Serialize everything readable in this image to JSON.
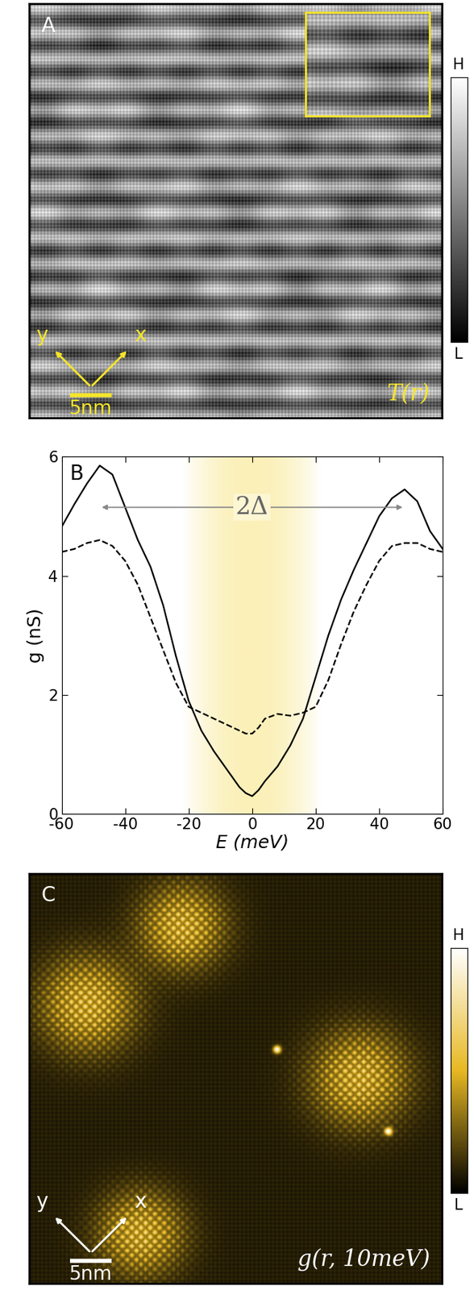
{
  "chart_data": [
    {
      "type": "image",
      "label": "A",
      "annotation": "T(r)",
      "scale_bar": "5nm",
      "axis_labels": [
        "x",
        "y"
      ],
      "colorbar_labels": [
        "L",
        "H"
      ],
      "color": "gray"
    },
    {
      "type": "line",
      "label": "B",
      "x": [
        -60,
        -56,
        -52,
        -48,
        -44,
        -40,
        -36,
        -32,
        -28,
        -24,
        -20,
        -16,
        -12,
        -8,
        -4,
        -2,
        0,
        2,
        4,
        8,
        12,
        16,
        20,
        24,
        28,
        32,
        36,
        40,
        44,
        48,
        52,
        56,
        60
      ],
      "series": [
        {
          "values": [
            4.82,
            5.2,
            5.55,
            5.85,
            5.7,
            5.15,
            4.6,
            4.15,
            3.5,
            2.65,
            1.9,
            1.4,
            1.05,
            0.75,
            0.45,
            0.35,
            0.3,
            0.4,
            0.55,
            0.8,
            1.15,
            1.6,
            2.3,
            3.0,
            3.6,
            4.1,
            4.55,
            5.0,
            5.3,
            5.45,
            5.25,
            4.75,
            4.45
          ],
          "color": "#000000",
          "line_style": "solid"
        },
        {
          "values": [
            4.4,
            4.45,
            4.55,
            4.6,
            4.5,
            4.25,
            3.85,
            3.3,
            2.75,
            2.2,
            1.8,
            1.7,
            1.6,
            1.5,
            1.4,
            1.35,
            1.35,
            1.45,
            1.6,
            1.68,
            1.65,
            1.7,
            1.8,
            2.25,
            2.85,
            3.4,
            3.85,
            4.25,
            4.5,
            4.55,
            4.55,
            4.45,
            4.4
          ],
          "color": "#000000",
          "line_style": "dashed"
        }
      ],
      "xlim": [
        -60,
        60
      ],
      "xticks": [
        -60,
        -40,
        -20,
        0,
        20,
        40,
        60
      ],
      "ylim": [
        0,
        6
      ],
      "yticks": [
        0,
        2,
        4,
        6
      ],
      "x_label": "E (meV)",
      "y_label": "g (nS)",
      "highlight": [
        -22,
        22
      ],
      "annotations": [
        {
          "text": "2Δ",
          "x": [
            -48,
            48
          ],
          "y": 5.15
        }
      ]
    },
    {
      "type": "image",
      "label": "C",
      "annotation": "g(r, 10meV)",
      "scale_bar": "5nm",
      "axis_labels": [
        "x",
        "y"
      ],
      "colorbar_labels": [
        "L",
        "H"
      ],
      "color": "#e8b923"
    }
  ]
}
